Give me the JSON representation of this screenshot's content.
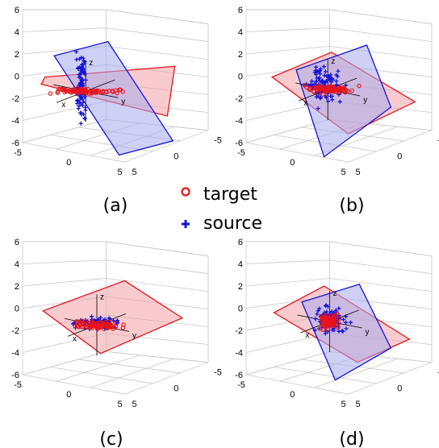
{
  "legend": [
    {
      "label": "target",
      "marker": "circle",
      "color": "#e8141b"
    },
    {
      "label": "source",
      "marker": "plus",
      "color": "#1414d6"
    }
  ],
  "colors": {
    "target": "#e8141b",
    "source": "#1414d6",
    "target_plane": "#f2a3a8",
    "source_plane": "#a7a9ee",
    "grid": "#c8c8c8"
  },
  "chart_data": [
    {
      "type": "scatter",
      "caption": "(a)",
      "series": [
        {
          "name": "target"
        },
        {
          "name": "source"
        }
      ],
      "zticks": [
        "6",
        "4",
        "2",
        "0",
        "-2",
        "-4",
        "-6"
      ],
      "xticks": [
        "-5",
        "0",
        "5"
      ],
      "yticks": [
        "-5",
        "0",
        "5"
      ],
      "axis_letters": [
        "x",
        "y",
        "z"
      ],
      "target": {
        "center": [
          0.34,
          0.46
        ],
        "spread": [
          0.28,
          0.022
        ],
        "count": 80
      },
      "source": {
        "center": [
          0.32,
          0.43
        ],
        "spread": [
          0.04,
          0.3
        ],
        "count": 90
      }
    },
    {
      "type": "scatter",
      "caption": "(b)",
      "series": [
        {
          "name": "target"
        },
        {
          "name": "source"
        }
      ],
      "zticks": [
        "6",
        "4",
        "2",
        "0",
        "-2",
        "-4",
        "-6"
      ],
      "xticks": [
        "-5",
        "0",
        "5"
      ],
      "yticks": [
        "-5",
        "0",
        "5"
      ],
      "axis_letters": [
        "x",
        "y",
        "z"
      ],
      "target": {
        "center": [
          0.44,
          0.45
        ],
        "spread": [
          0.24,
          0.035
        ],
        "count": 80
      },
      "source": {
        "center": [
          0.42,
          0.43
        ],
        "spread": [
          0.16,
          0.16
        ],
        "count": 90
      }
    },
    {
      "type": "scatter",
      "caption": "(c)",
      "series": [
        {
          "name": "target"
        },
        {
          "name": "source"
        }
      ],
      "zticks": [
        "6",
        "4",
        "2",
        "0",
        "-2",
        "-4",
        "-6"
      ],
      "xticks": [
        "-5",
        "0",
        "5"
      ],
      "yticks": [
        "-5",
        "0",
        "5"
      ],
      "axis_letters": [
        "x",
        "y",
        "z"
      ],
      "target": {
        "center": [
          0.4,
          0.47
        ],
        "spread": [
          0.22,
          0.04
        ],
        "count": 80
      },
      "source": {
        "center": [
          0.38,
          0.46
        ],
        "spread": [
          0.2,
          0.05
        ],
        "count": 90
      }
    },
    {
      "type": "scatter",
      "caption": "(d)",
      "series": [
        {
          "name": "target"
        },
        {
          "name": "source"
        }
      ],
      "zticks": [
        "6",
        "4",
        "2",
        "0",
        "-2",
        "-4",
        "-6"
      ],
      "xticks": [
        "-5",
        "0",
        "5"
      ],
      "yticks": [
        "-5",
        "0",
        "5"
      ],
      "axis_letters": [
        "x",
        "y",
        "z"
      ],
      "target": {
        "center": [
          0.45,
          0.45
        ],
        "spread": [
          0.09,
          0.07
        ],
        "count": 80
      },
      "source": {
        "center": [
          0.45,
          0.45
        ],
        "spread": [
          0.14,
          0.13
        ],
        "count": 90
      }
    }
  ]
}
